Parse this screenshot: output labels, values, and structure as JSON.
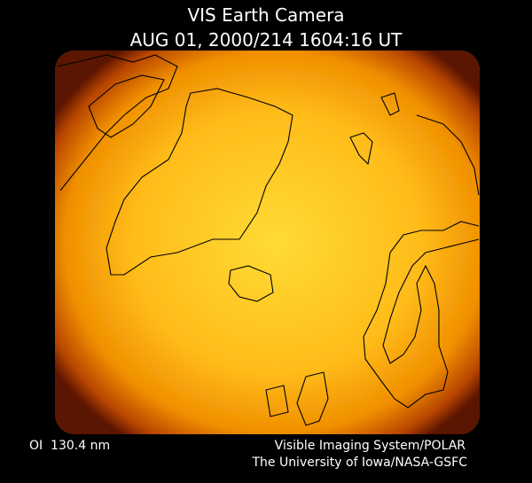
{
  "header": {
    "title": "VIS Earth Camera",
    "timestamp": "AUG 01, 2000/214 1604:16 UT"
  },
  "footer": {
    "wavelength": "OI  130.4 nm",
    "instrument": "Visible Imaging System/POLAR",
    "institution": "The University of Iowa/NASA-GSFC"
  }
}
